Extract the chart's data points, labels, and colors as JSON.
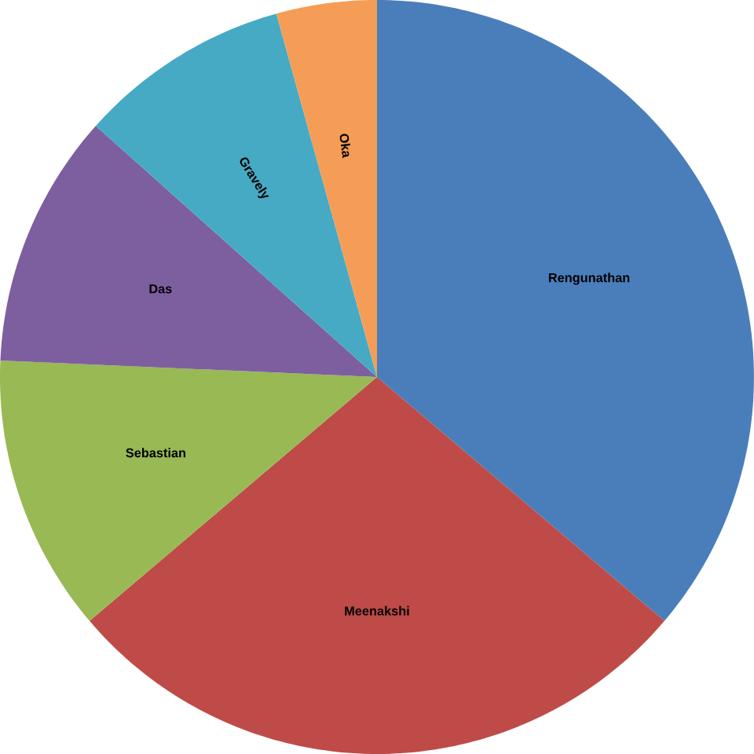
{
  "chart_data": {
    "type": "pie",
    "categories": [
      "Rengunathan",
      "Meenakshi",
      "Sebastian",
      "Das",
      "Gravely",
      "Oka"
    ],
    "values": [
      36.2,
      27.6,
      11.9,
      10.9,
      9.1,
      4.3
    ],
    "colors": [
      "#4a7ebb",
      "#be4b48",
      "#98b954",
      "#7d5fa0",
      "#46aac5",
      "#f59d56"
    ]
  }
}
